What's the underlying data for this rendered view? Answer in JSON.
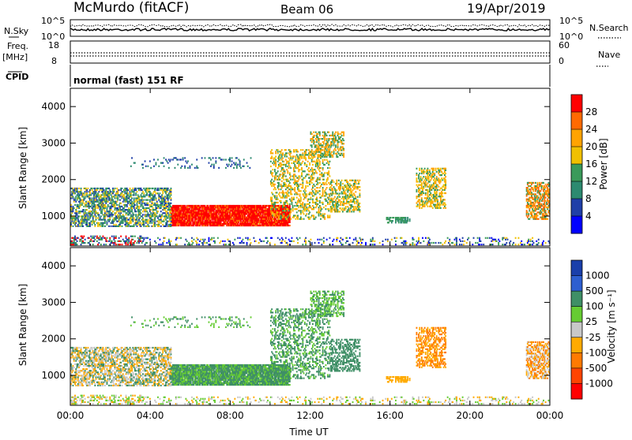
{
  "header": {
    "station": "McMurdo (fitACF)",
    "beam": "Beam 06",
    "date": "19/Apr/2019"
  },
  "strips": {
    "nsky_label": "N.Sky",
    "nsky_ticks": [
      "10^5",
      "10^0"
    ],
    "nsearch_label": "N.Search",
    "nsearch_ticks": [
      "10^5",
      "10^0"
    ],
    "freq_label_top": "Freq.",
    "freq_label_unit": "[MHz]",
    "freq_ticks": [
      "18",
      "8"
    ],
    "nave_label": "Nave",
    "nave_ticks": [
      "60",
      "0"
    ],
    "cpid_label": "CPID",
    "cpid_value": "normal (fast) 151 RF"
  },
  "chart_data": [
    {
      "type": "heatmap",
      "name": "power",
      "ylabel": "Slant Range [km]",
      "yticks": [
        "4000",
        "3000",
        "2000",
        "1000"
      ],
      "ylim": [
        180,
        4500
      ],
      "xlim": [
        0,
        24
      ],
      "colorbar_label": "Power [dB]",
      "colorbar_ticks": [
        "28",
        "24",
        "20",
        "16",
        "12",
        "8",
        "4"
      ],
      "colorbar_colors": [
        "#ff0000",
        "#ff6a00",
        "#ffa300",
        "#f0c000",
        "#3a9a5a",
        "#2c8a70",
        "#1f3fa8",
        "#0000ff"
      ]
    },
    {
      "type": "heatmap",
      "name": "velocity",
      "ylabel": "Slant Range [km]",
      "yticks": [
        "4000",
        "3000",
        "2000",
        "1000"
      ],
      "ylim": [
        180,
        4500
      ],
      "xlim": [
        0,
        24
      ],
      "xlabel": "Time UT",
      "xticks": [
        "00:00",
        "04:00",
        "08:00",
        "12:00",
        "16:00",
        "20:00",
        "00:00"
      ],
      "colorbar_label": "Velocity [m s⁻¹]",
      "colorbar_ticks": [
        "1000",
        "500",
        "100",
        "25",
        "-25",
        "-100",
        "-500",
        "-1000"
      ],
      "colorbar_colors": [
        "#1a3faa",
        "#2e5fd0",
        "#3f8f66",
        "#66cc33",
        "#c8c8c8",
        "#ffaa00",
        "#ff7a00",
        "#ff4400",
        "#ff0000"
      ]
    }
  ]
}
